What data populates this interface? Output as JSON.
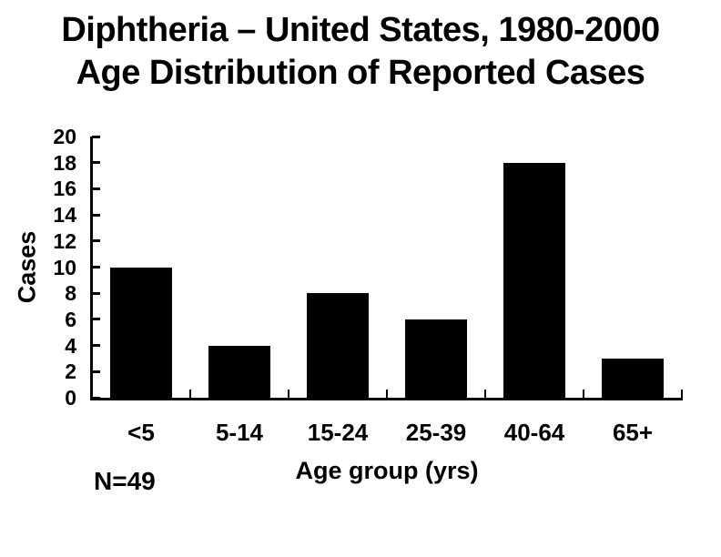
{
  "title": {
    "line1": "Diphtheria – United States, 1980-2000",
    "line2": "Age Distribution of Reported Cases"
  },
  "annotation": {
    "n_label": "N=49"
  },
  "chart_data": {
    "type": "bar",
    "title": "Diphtheria – United States, 1980-2000 Age Distribution of Reported Cases",
    "categories": [
      "<5",
      "5-14",
      "15-24",
      "25-39",
      "40-64",
      "65+"
    ],
    "values": [
      10,
      4,
      8,
      6,
      18,
      3
    ],
    "xlabel": "Age group (yrs)",
    "ylabel": "Cases",
    "ylim": [
      0,
      20
    ],
    "ytick_step": 2,
    "yticks": [
      20,
      18,
      16,
      14,
      12,
      10,
      8,
      6,
      4,
      2,
      0
    ],
    "bar_color": "#000000",
    "axis_color": "#000000",
    "background_color": "#ffffff",
    "grid": false,
    "legend": "none"
  }
}
